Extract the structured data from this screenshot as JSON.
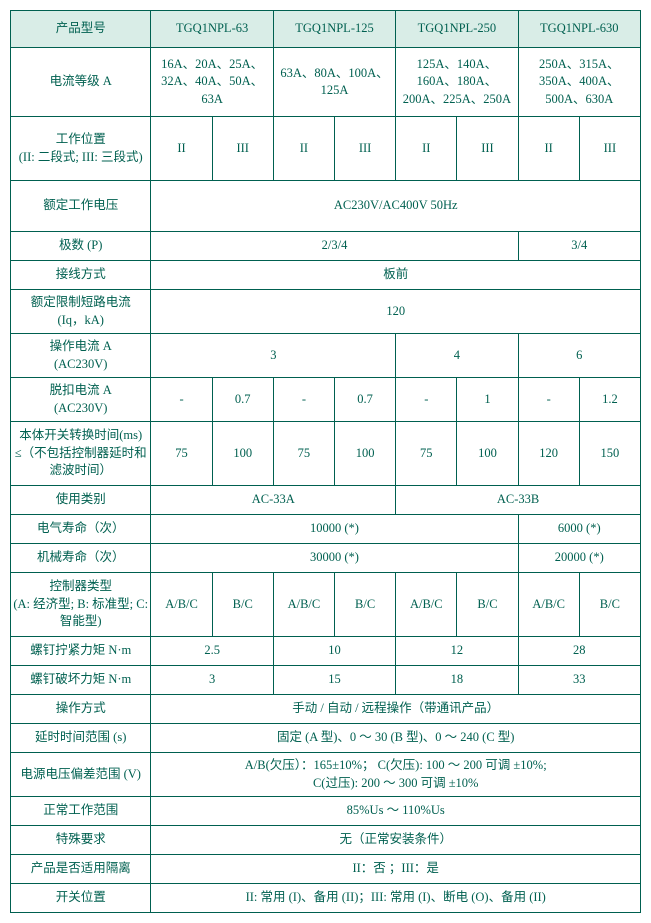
{
  "colors": {
    "text": "#006050",
    "border": "#006050",
    "header_bg": "#d9ede7",
    "page_bg": "#ffffff"
  },
  "table": {
    "header": [
      "产品型号",
      "TGQ1NPL-63",
      "TGQ1NPL-125",
      "TGQ1NPL-250",
      "TGQ1NPL-630"
    ],
    "rows": {
      "current_class": {
        "label": "电流等级 A",
        "values": [
          "16A、20A、25A、32A、40A、50A、63A",
          "63A、80A、100A、125A",
          "125A、140A、160A、180A、200A、225A、250A",
          "250A、315A、350A、400A、500A、630A"
        ]
      },
      "work_position": {
        "label": "工作位置\n(II: 二段式; III: 三段式)",
        "sub": [
          "II",
          "III",
          "II",
          "III",
          "II",
          "III",
          "II",
          "III"
        ]
      },
      "rated_voltage": {
        "label": "额定工作电压",
        "value": "AC230V/AC400V 50Hz"
      },
      "poles": {
        "label": "极数 (P)",
        "values": [
          "2/3/4",
          "3/4"
        ]
      },
      "wiring": {
        "label": "接线方式",
        "value": "板前"
      },
      "short_circuit": {
        "label": "额定限制短路电流\n(Iq，kA)",
        "value": "120"
      },
      "op_current": {
        "label": "操作电流 A\n(AC230V)",
        "values": [
          "3",
          "4",
          "6"
        ]
      },
      "trip_current": {
        "label": "脱扣电流 A\n(AC230V)",
        "sub": [
          "-",
          "0.7",
          "-",
          "0.7",
          "-",
          "1",
          "-",
          "1.2"
        ]
      },
      "switch_time": {
        "label": "本体开关转换时间(ms)\n≤（不包括控制器延时和滤波时间）",
        "sub": [
          "75",
          "100",
          "75",
          "100",
          "75",
          "100",
          "120",
          "150"
        ]
      },
      "use_category": {
        "label": "使用类别",
        "values": [
          "AC-33A",
          "AC-33B"
        ]
      },
      "electrical_life": {
        "label": "电气寿命（次）",
        "values": [
          "10000 (*)",
          "6000 (*)"
        ]
      },
      "mechanical_life": {
        "label": "机械寿命（次）",
        "values": [
          "30000 (*)",
          "20000 (*)"
        ]
      },
      "controller_type": {
        "label": "控制器类型\n(A: 经济型; B: 标准型; C: 智能型)",
        "sub": [
          "A/B/C",
          "B/C",
          "A/B/C",
          "B/C",
          "A/B/C",
          "B/C",
          "A/B/C",
          "B/C"
        ]
      },
      "tightening_torque": {
        "label": "螺钉拧紧力矩 N·m",
        "values": [
          "2.5",
          "10",
          "12",
          "28"
        ]
      },
      "break_torque": {
        "label": "螺钉破坏力矩 N·m",
        "values": [
          "3",
          "15",
          "18",
          "33"
        ]
      },
      "operation_mode": {
        "label": "操作方式",
        "value": "手动 / 自动 / 远程操作（带通讯产品）"
      },
      "delay_range": {
        "label": "延时时间范围 (s)",
        "value": "固定 (A 型)、0 ～ 30 (B 型)、0 ～ 240 (C 型)"
      },
      "voltage_deviation": {
        "label": "电源电压偏差范围 (V)",
        "value": "A/B(欠压）：165±10%；  C(欠压): 100 ～ 200 可调 ±10%;\nC(过压): 200 ～ 300 可调 ±10%"
      },
      "normal_range": {
        "label": "正常工作范围",
        "value": "85%Us ～ 110%Us"
      },
      "special_req": {
        "label": "特殊要求",
        "value": "无（正常安装条件）"
      },
      "isolation": {
        "label": "产品是否适用隔离",
        "value": "II：否 ；III：是"
      },
      "switch_pos": {
        "label": "开关位置",
        "value": "II: 常用 (I)、备用 (II)；III: 常用 (I)、断电 (O)、备用 (II)"
      }
    }
  }
}
